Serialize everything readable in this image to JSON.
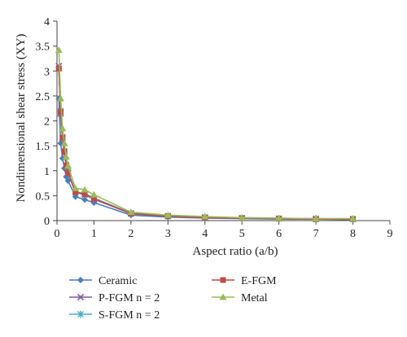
{
  "chart_data": {
    "type": "line",
    "xlabel": "Aspect ratio (a/b)",
    "ylabel": "Nondimensional shear stress (XY)",
    "xlim": [
      0,
      9
    ],
    "ylim": [
      0,
      4
    ],
    "xticks": [
      0,
      1,
      2,
      3,
      4,
      5,
      6,
      7,
      8,
      9
    ],
    "yticks": [
      0,
      0.5,
      1,
      1.5,
      2,
      2.5,
      3,
      3.5,
      4
    ],
    "grid": false,
    "legend_position": "bottom",
    "x": [
      0.05,
      0.1,
      0.15,
      0.2,
      0.25,
      0.3,
      0.5,
      0.75,
      1,
      2,
      3,
      4,
      5,
      6,
      7,
      8
    ],
    "series": [
      {
        "name": "Ceramic",
        "color": "#4a7ebb",
        "marker": "diamond",
        "values": [
          2.45,
          1.55,
          1.25,
          1.05,
          0.88,
          0.8,
          0.48,
          0.42,
          0.36,
          0.11,
          0.07,
          0.05,
          0.04,
          0.03,
          0.03,
          0.02
        ]
      },
      {
        "name": "P-FGM n = 2",
        "color": "#7f5fa8",
        "marker": "x",
        "values": [
          3.1,
          2.15,
          1.65,
          1.35,
          1.1,
          0.95,
          0.57,
          0.52,
          0.43,
          0.14,
          0.09,
          0.06,
          0.05,
          0.04,
          0.03,
          0.03
        ]
      },
      {
        "name": "S-FGM n = 2",
        "color": "#4bacc6",
        "marker": "asterisk",
        "values": [
          3.05,
          2.2,
          1.68,
          1.4,
          1.12,
          0.98,
          0.58,
          0.54,
          0.45,
          0.15,
          0.09,
          0.07,
          0.05,
          0.04,
          0.04,
          0.03
        ]
      },
      {
        "name": "E-FGM",
        "color": "#be4b48",
        "marker": "square",
        "values": [
          3.05,
          2.18,
          1.66,
          1.38,
          1.1,
          0.96,
          0.57,
          0.53,
          0.44,
          0.14,
          0.09,
          0.06,
          0.05,
          0.04,
          0.03,
          0.03
        ]
      },
      {
        "name": "Metal",
        "color": "#9bbb59",
        "marker": "triangle",
        "values": [
          3.42,
          2.45,
          1.85,
          1.55,
          1.28,
          1.1,
          0.65,
          0.62,
          0.52,
          0.17,
          0.11,
          0.08,
          0.06,
          0.05,
          0.04,
          0.04
        ]
      }
    ]
  }
}
